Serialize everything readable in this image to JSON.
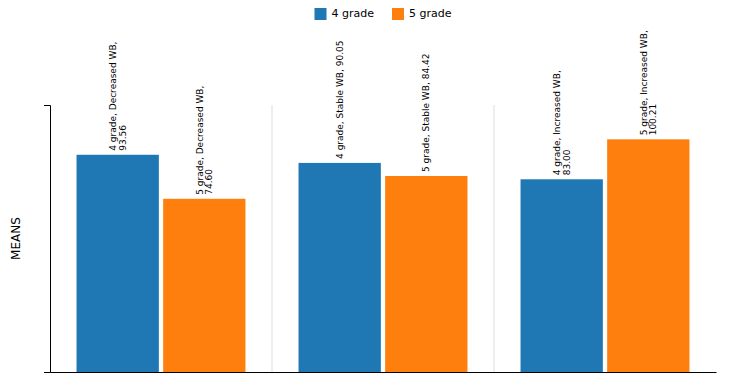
{
  "chart_data": {
    "type": "bar",
    "categories": [
      null,
      null,
      null
    ],
    "series": [
      {
        "name": "4 grade",
        "values": [
          93.56,
          90.05,
          83.0
        ],
        "value_labels": [
          "4 grade, Decreased WB,\n93.56",
          "4 grade, Stable WB, 90.05",
          "4 grade, Increased WB,\n83.00"
        ]
      },
      {
        "name": "5 grade",
        "values": [
          74.6,
          84.42,
          100.21
        ],
        "value_labels": [
          "5 grade, Decreased WB,\n74.60",
          "5 grade, Stable WB, 84.42",
          "5 grade, Increased WB,\n100.21"
        ]
      }
    ],
    "ylabel": "MEANS",
    "ylim": [
      0,
      115
    ],
    "tick_labels": false,
    "data_labels": true,
    "legend": "top"
  }
}
